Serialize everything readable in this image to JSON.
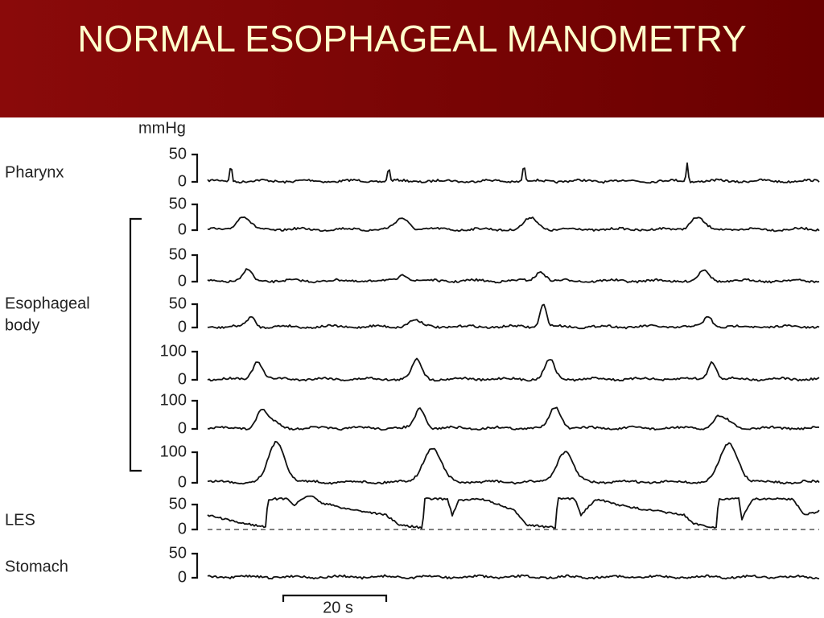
{
  "title": "NORMAL ESOPHAGEAL MANOMETRY",
  "unit": "mmHg",
  "channels": [
    {
      "label": "Pharynx",
      "ticks": [
        "50",
        "0"
      ]
    },
    {
      "ticks": [
        "50",
        "0"
      ]
    },
    {
      "ticks": [
        "50",
        "0"
      ]
    },
    {
      "ticks": [
        "50",
        "0"
      ]
    },
    {
      "ticks": [
        "100",
        "0"
      ]
    },
    {
      "ticks": [
        "100",
        "0"
      ]
    },
    {
      "ticks": [
        "100",
        "0"
      ]
    },
    {
      "label": "LES",
      "ticks": [
        "50",
        "0"
      ]
    },
    {
      "label": "Stomach",
      "ticks": [
        "50",
        "0"
      ]
    }
  ],
  "group_label": [
    "Esophageal",
    "body"
  ],
  "scale_bar": "20 s"
}
